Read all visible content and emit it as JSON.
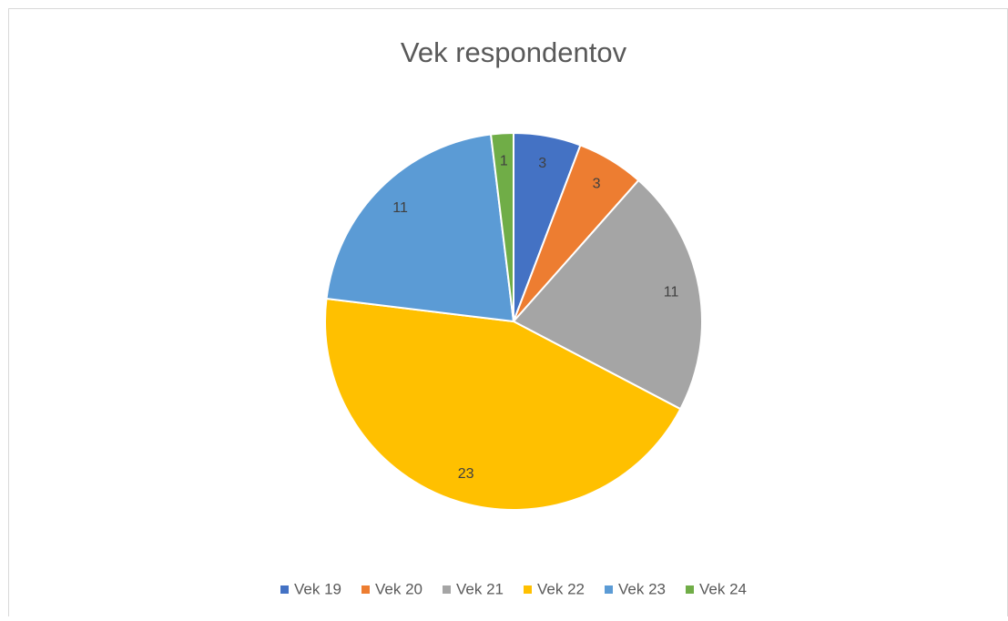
{
  "chart_data": {
    "type": "pie",
    "title": "Vek respondentov",
    "categories": [
      "Vek 19",
      "Vek 20",
      "Vek 21",
      "Vek 22",
      "Vek 23",
      "Vek 24"
    ],
    "values": [
      3,
      3,
      11,
      23,
      11,
      1
    ],
    "colors": [
      "#4472c4",
      "#ed7d31",
      "#a5a5a5",
      "#ffc000",
      "#5b9bd5",
      "#70ad47"
    ],
    "legend": "bottom"
  }
}
